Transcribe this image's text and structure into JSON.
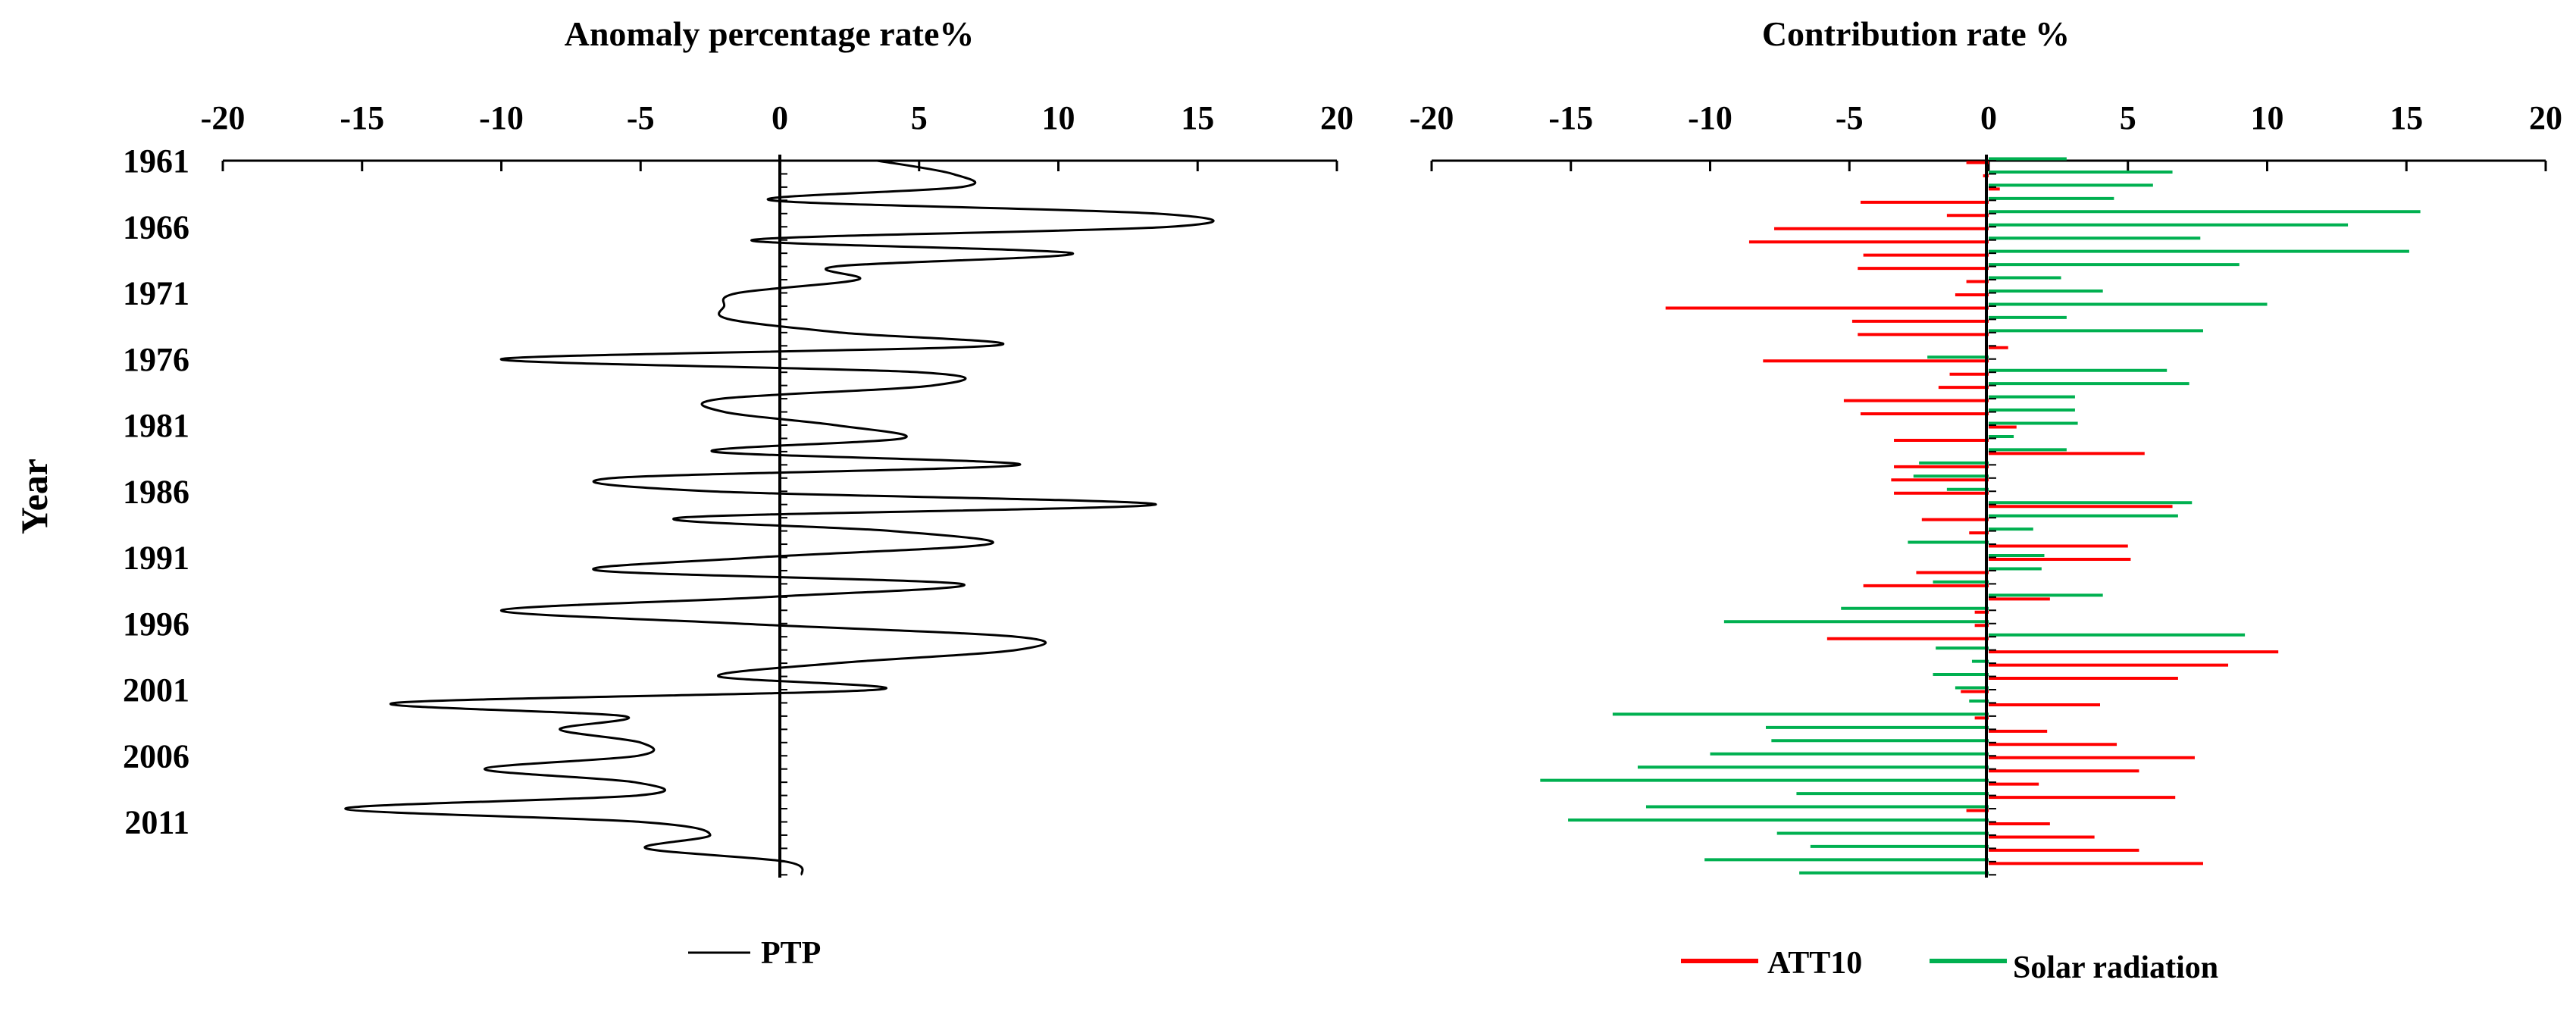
{
  "chart_data": [
    {
      "type": "line",
      "title": "Anomaly percentage rate%",
      "xlabel": "",
      "ylabel": "Year",
      "xlim": [
        -20,
        20
      ],
      "x_ticks": [
        -20,
        -15,
        -10,
        -5,
        0,
        5,
        10,
        15,
        20
      ],
      "y_tick_labels": [
        "1961",
        "1966",
        "1971",
        "1976",
        "1981",
        "1986",
        "1991",
        "1996",
        "2001",
        "2006",
        "2011"
      ],
      "years": [
        1961,
        1962,
        1963,
        1964,
        1965,
        1966,
        1967,
        1968,
        1969,
        1970,
        1971,
        1972,
        1973,
        1974,
        1975,
        1976,
        1977,
        1978,
        1979,
        1980,
        1981,
        1982,
        1983,
        1984,
        1985,
        1986,
        1987,
        1988,
        1989,
        1990,
        1991,
        1992,
        1993,
        1994,
        1995,
        1996,
        1997,
        1998,
        1999,
        2000,
        2001,
        2002,
        2003,
        2004,
        2005,
        2006,
        2007,
        2008,
        2009,
        2010,
        2011,
        2012,
        2013,
        2014,
        2015
      ],
      "series": [
        {
          "name": "PTP",
          "color": "#000000",
          "values": [
            3.5,
            6.2,
            6.5,
            -0.3,
            13.5,
            14.0,
            -1.0,
            10.5,
            2.0,
            2.8,
            -1.5,
            -2.0,
            -1.8,
            2.2,
            7.6,
            -10.0,
            5.0,
            5.5,
            -2.1,
            -2.0,
            2.0,
            4.4,
            -2.4,
            8.6,
            -6.0,
            -2.5,
            13.5,
            -3.6,
            4.0,
            7.5,
            -0.8,
            -6.5,
            6.5,
            -0.5,
            -10.0,
            -1.5,
            8.5,
            8.5,
            2.0,
            -2.2,
            3.5,
            -13.8,
            -5.6,
            -7.9,
            -5.0,
            -5.1,
            -10.6,
            -5.2,
            -5.1,
            -15.6,
            -5.0,
            -2.5,
            -4.8,
            0.2,
            0.8
          ]
        }
      ],
      "legend": [
        "PTP"
      ]
    },
    {
      "type": "bar",
      "orientation": "horizontal",
      "title": "Contribution rate %",
      "xlabel": "",
      "ylabel": "",
      "xlim": [
        -20,
        20
      ],
      "x_ticks": [
        -20,
        -15,
        -10,
        -5,
        0,
        5,
        10,
        15,
        20
      ],
      "years": [
        1961,
        1962,
        1963,
        1964,
        1965,
        1966,
        1967,
        1968,
        1969,
        1970,
        1971,
        1972,
        1973,
        1974,
        1975,
        1976,
        1977,
        1978,
        1979,
        1980,
        1981,
        1982,
        1983,
        1984,
        1985,
        1986,
        1987,
        1988,
        1989,
        1990,
        1991,
        1992,
        1993,
        1994,
        1995,
        1996,
        1997,
        1998,
        1999,
        2000,
        2001,
        2002,
        2003,
        2004,
        2005,
        2006,
        2007,
        2008,
        2009,
        2010,
        2011,
        2012,
        2013,
        2014,
        2015
      ],
      "series": [
        {
          "name": "ATT10",
          "color": "#ff0000",
          "values": [
            -0.8,
            -0.2,
            0.4,
            -4.6,
            -1.5,
            -7.7,
            -8.6,
            -4.5,
            -4.7,
            -0.8,
            -1.2,
            -11.6,
            -4.9,
            -4.7,
            0.7,
            -8.1,
            -1.4,
            -1.8,
            -5.2,
            -4.6,
            1.0,
            -3.4,
            5.6,
            -3.4,
            -3.5,
            -3.4,
            6.6,
            -2.4,
            -0.7,
            5.0,
            5.1,
            -2.6,
            -4.5,
            2.2,
            -0.5,
            -0.5,
            -5.8,
            10.4,
            8.6,
            6.8,
            -1.0,
            4.0,
            -0.5,
            2.1,
            4.6,
            7.4,
            5.4,
            1.8,
            6.7,
            -0.8,
            2.2,
            3.8,
            5.4,
            7.7,
            0.0
          ]
        },
        {
          "name": "Solar radiation",
          "color": "#00b050",
          "values": [
            2.8,
            6.6,
            5.9,
            4.5,
            15.5,
            12.9,
            7.6,
            15.1,
            9.0,
            2.6,
            4.1,
            10.0,
            2.8,
            7.7,
            0.0,
            -2.2,
            6.4,
            7.2,
            3.1,
            3.1,
            3.2,
            0.9,
            2.8,
            -2.5,
            -2.7,
            -1.5,
            7.3,
            6.8,
            1.6,
            -2.9,
            2.0,
            1.9,
            -2.0,
            4.1,
            -5.3,
            -9.5,
            9.2,
            -1.9,
            -0.6,
            -2.0,
            -1.2,
            -0.7,
            -13.5,
            -8.0,
            -7.8,
            -10.0,
            -12.6,
            -16.1,
            -6.9,
            -12.3,
            -15.1,
            -7.6,
            -6.4,
            -10.2,
            -6.8
          ]
        }
      ],
      "legend": [
        "ATT10",
        "Solar radiation"
      ]
    }
  ]
}
